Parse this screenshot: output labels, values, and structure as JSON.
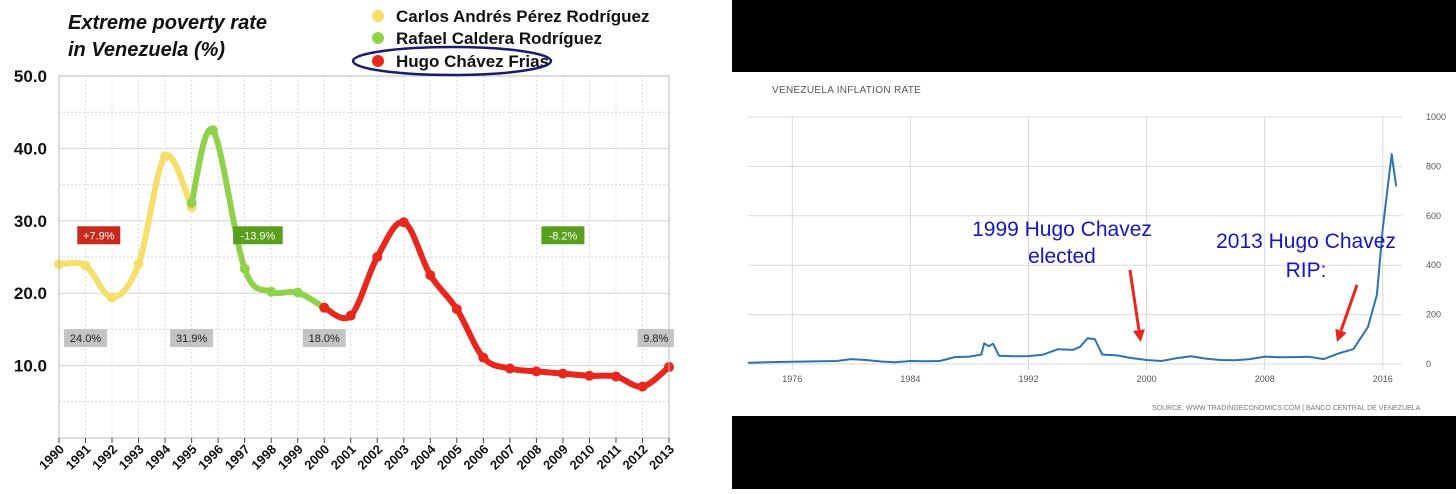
{
  "colors": {
    "perez": "#f5de6a",
    "caldera": "#8fd24a",
    "chavez": "#e8261c",
    "inflation_line": "#2b73b6",
    "annotation_blue": "#1515c8",
    "annotation_arrow": "#e8261c",
    "box_red": "#c92a1e",
    "box_green": "#5a9e1e",
    "box_gray": "#c4c4c4"
  },
  "chart_data": [
    {
      "type": "line",
      "title": "Extreme poverty rate",
      "subtitle": "in Venezuela (%)",
      "xlabel": "",
      "ylabel": "",
      "x_ticks": [
        "1990",
        "1991",
        "1992",
        "1993",
        "1994",
        "1995",
        "1996",
        "1997",
        "1998",
        "1999",
        "2000",
        "2001",
        "2002",
        "2003",
        "2004",
        "2005",
        "2006",
        "2007",
        "2008",
        "2009",
        "2010",
        "2011",
        "2012",
        "2013"
      ],
      "y_ticks": [
        "10.0",
        "20.0",
        "30.0",
        "40.0",
        "50.0"
      ],
      "ylim": [
        0,
        50
      ],
      "xlim": [
        1990,
        2013
      ],
      "grid": true,
      "legend_position": "top",
      "series": [
        {
          "name": "Carlos Andrés Pérez Rodríguez",
          "color_key": "perez",
          "points": [
            [
              1990,
              24.0
            ],
            [
              1991,
              23.8
            ],
            [
              1992,
              19.4
            ],
            [
              1993,
              24.0
            ],
            [
              1994,
              38.9
            ],
            [
              1995,
              31.9
            ]
          ]
        },
        {
          "name": "Rafael Caldera Rodríguez",
          "color_key": "caldera",
          "points": [
            [
              1995,
              32.5
            ],
            [
              1995.8,
              42.5
            ],
            [
              1997,
              23.4
            ],
            [
              1998,
              20.2
            ],
            [
              1999,
              20.1
            ],
            [
              2000,
              18.0
            ]
          ]
        },
        {
          "name": "Hugo Chávez Frias",
          "color_key": "chavez",
          "points": [
            [
              2000,
              18.0
            ],
            [
              2001,
              16.9
            ],
            [
              2002,
              25.0
            ],
            [
              2003,
              29.8
            ],
            [
              2004,
              22.5
            ],
            [
              2005,
              17.8
            ],
            [
              2006,
              11.1
            ],
            [
              2007,
              9.6
            ],
            [
              2008,
              9.2
            ],
            [
              2009,
              8.9
            ],
            [
              2010,
              8.6
            ],
            [
              2011,
              8.5
            ],
            [
              2012,
              7.1
            ],
            [
              2013,
              9.8
            ]
          ]
        }
      ],
      "annotations": [
        {
          "text": "+7.9%",
          "style": "red",
          "x": 1991.5,
          "y": 28.0
        },
        {
          "text": "-13.9%",
          "style": "green",
          "x": 1997.5,
          "y": 28.0
        },
        {
          "text": "-8.2%",
          "style": "green",
          "x": 2009,
          "y": 28.0
        },
        {
          "text": "24.0%",
          "style": "gray",
          "x": 1991,
          "y": 13.8
        },
        {
          "text": "31.9%",
          "style": "gray",
          "x": 1995,
          "y": 13.8
        },
        {
          "text": "18.0%",
          "style": "gray",
          "x": 2000,
          "y": 13.8
        },
        {
          "text": "9.8%",
          "style": "gray",
          "x": 2012.5,
          "y": 13.8
        }
      ]
    },
    {
      "type": "line",
      "title": "VENEZUELA INFLATION RATE",
      "source": "SOURCE: WWW.TRADINGECONOMICS.COM | BANCO CENTRAL DE VENEZUELA",
      "x_ticks": [
        "1976",
        "1984",
        "1992",
        "2000",
        "2008",
        "2016"
      ],
      "y_ticks": [
        "0",
        "200",
        "400",
        "600",
        "800",
        "1000"
      ],
      "ylim": [
        0,
        1000
      ],
      "xlim": [
        1973,
        2017.3
      ],
      "grid": true,
      "series": [
        {
          "name": "",
          "color_key": "inflation_line",
          "points": [
            [
              1973,
              5
            ],
            [
              1975,
              8
            ],
            [
              1977,
              10
            ],
            [
              1979,
              12
            ],
            [
              1980,
              20
            ],
            [
              1981,
              16
            ],
            [
              1982,
              10
            ],
            [
              1983,
              7
            ],
            [
              1984,
              12
            ],
            [
              1985,
              11
            ],
            [
              1986,
              12
            ],
            [
              1987,
              28
            ],
            [
              1988,
              30
            ],
            [
              1988.8,
              38
            ],
            [
              1989,
              84
            ],
            [
              1989.3,
              72
            ],
            [
              1989.6,
              82
            ],
            [
              1990,
              33
            ],
            [
              1991,
              31
            ],
            [
              1992,
              32
            ],
            [
              1993,
              38
            ],
            [
              1994,
              60
            ],
            [
              1995,
              57
            ],
            [
              1995.5,
              70
            ],
            [
              1996,
              104
            ],
            [
              1996.5,
              100
            ],
            [
              1997,
              38
            ],
            [
              1998,
              35
            ],
            [
              1999,
              24
            ],
            [
              2000,
              16
            ],
            [
              2001,
              12
            ],
            [
              2002,
              23
            ],
            [
              2003,
              31
            ],
            [
              2004,
              22
            ],
            [
              2005,
              16
            ],
            [
              2006,
              15
            ],
            [
              2007,
              20
            ],
            [
              2008,
              30
            ],
            [
              2009,
              27
            ],
            [
              2010,
              28
            ],
            [
              2011,
              29
            ],
            [
              2012,
              20
            ],
            [
              2013,
              43
            ],
            [
              2014,
              60
            ],
            [
              2015,
              150
            ],
            [
              2015.6,
              280
            ],
            [
              2016,
              550
            ],
            [
              2016.6,
              850
            ],
            [
              2016.9,
              720
            ]
          ]
        }
      ],
      "annotations": [
        {
          "line1": "1999 Hugo Chavez",
          "line2": "elected",
          "arrow_to_year": 1999.6
        },
        {
          "line1": "2013 Hugo Chavez",
          "line2": "RIP:",
          "arrow_to_year": 2012.9
        }
      ]
    }
  ]
}
